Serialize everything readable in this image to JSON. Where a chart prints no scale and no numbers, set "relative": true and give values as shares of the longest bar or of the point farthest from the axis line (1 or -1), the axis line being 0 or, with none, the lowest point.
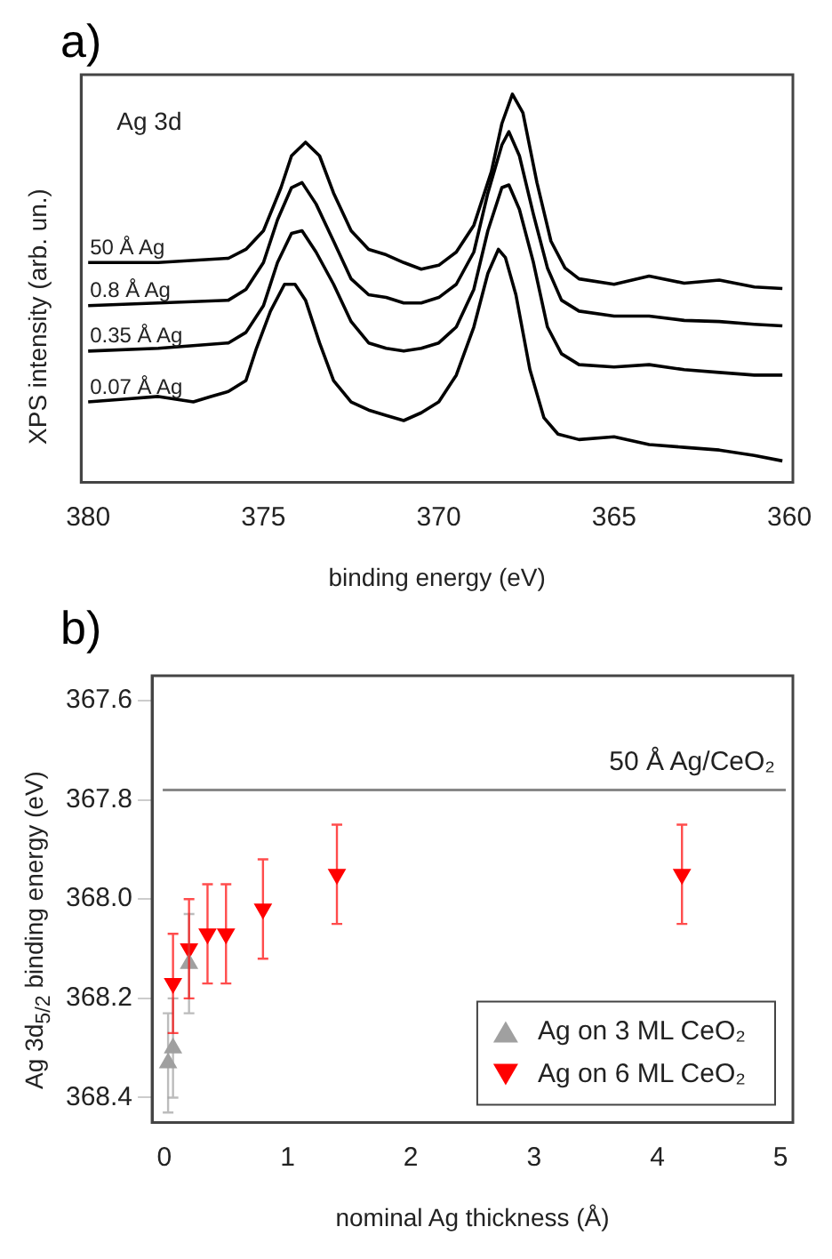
{
  "chart_data": [
    {
      "type": "line",
      "title": "a)",
      "xlabel": "binding energy (eV)",
      "ylabel": "XPS intensity (arb. un.)",
      "relative": true,
      "xlim": [
        380.2,
        359.9
      ],
      "xticks": [
        380,
        375,
        370,
        365,
        360
      ],
      "grid": false,
      "legend": false,
      "marker": "none",
      "line_style": "solid",
      "annotations": [
        "Ag 3d"
      ],
      "series": [
        {
          "name": "50 Å Ag",
          "color": "#000000",
          "x": [
            380,
            378,
            376,
            375.5,
            375,
            374.5,
            374.2,
            373.8,
            373.4,
            373,
            372.5,
            372,
            371.5,
            371,
            370.5,
            370,
            369.5,
            369,
            368.5,
            368.2,
            367.9,
            367.6,
            367.2,
            366.8,
            366.4,
            366,
            365,
            364,
            363,
            362,
            361,
            360.2
          ],
          "values": [
            0.566,
            0.566,
            0.577,
            0.6,
            0.648,
            0.759,
            0.841,
            0.876,
            0.841,
            0.745,
            0.648,
            0.6,
            0.586,
            0.566,
            0.549,
            0.559,
            0.593,
            0.662,
            0.8,
            0.924,
            1,
            0.952,
            0.772,
            0.621,
            0.552,
            0.524,
            0.51,
            0.531,
            0.513,
            0.521,
            0.503,
            0.499
          ]
        },
        {
          "name": "0.8 Å Ag",
          "color": "#000000",
          "x": [
            380,
            378,
            376,
            375.5,
            375,
            374.6,
            374.2,
            373.9,
            373.5,
            373,
            372.5,
            372,
            371.5,
            371,
            370.5,
            370,
            369.5,
            369,
            368.6,
            368.2,
            368,
            367.7,
            367.3,
            366.9,
            366.5,
            366,
            365,
            364,
            363,
            362,
            361,
            360.2
          ],
          "values": [
            0.455,
            0.462,
            0.469,
            0.497,
            0.566,
            0.676,
            0.759,
            0.772,
            0.717,
            0.621,
            0.524,
            0.483,
            0.476,
            0.462,
            0.462,
            0.476,
            0.51,
            0.593,
            0.745,
            0.869,
            0.903,
            0.841,
            0.69,
            0.552,
            0.469,
            0.441,
            0.428,
            0.428,
            0.417,
            0.414,
            0.407,
            0.403
          ]
        },
        {
          "name": "0.35 Å Ag",
          "color": "#000000",
          "x": [
            380,
            378,
            376,
            375.5,
            375,
            374.6,
            374.2,
            373.9,
            373.5,
            373,
            372.5,
            372,
            371.5,
            371,
            370.5,
            370,
            369.5,
            369,
            368.6,
            368.2,
            368,
            367.7,
            367.3,
            366.9,
            366.5,
            366,
            365,
            364,
            363,
            362,
            361,
            360.2
          ],
          "values": [
            0.338,
            0.345,
            0.359,
            0.386,
            0.455,
            0.566,
            0.641,
            0.648,
            0.593,
            0.51,
            0.414,
            0.359,
            0.345,
            0.338,
            0.345,
            0.359,
            0.4,
            0.497,
            0.648,
            0.759,
            0.766,
            0.703,
            0.566,
            0.4,
            0.331,
            0.303,
            0.297,
            0.303,
            0.29,
            0.283,
            0.276,
            0.276
          ]
        },
        {
          "name": "0.07 Å Ag",
          "color": "#000000",
          "x": [
            380,
            379,
            378,
            377,
            376.5,
            376,
            375.5,
            375.2,
            374.8,
            374.4,
            374.1,
            373.8,
            373.4,
            373,
            372.5,
            372,
            371.5,
            371,
            370.5,
            370,
            369.5,
            369,
            368.6,
            368.3,
            368.1,
            367.8,
            367.4,
            367,
            366.6,
            366,
            365,
            364,
            363,
            362,
            361,
            360.2
          ],
          "values": [
            0.207,
            0.214,
            0.221,
            0.207,
            0.221,
            0.234,
            0.262,
            0.345,
            0.441,
            0.51,
            0.51,
            0.469,
            0.359,
            0.262,
            0.207,
            0.186,
            0.172,
            0.159,
            0.179,
            0.207,
            0.276,
            0.4,
            0.538,
            0.6,
            0.579,
            0.483,
            0.29,
            0.166,
            0.124,
            0.11,
            0.117,
            0.097,
            0.09,
            0.083,
            0.069,
            0.055
          ]
        }
      ]
    },
    {
      "type": "scatter",
      "title": "b)",
      "xlabel": "nominal Ag thickness (Å)",
      "ylabel": "Ag 3d$_{5/2}$ binding energy (eV)",
      "xlim": [
        -0.1,
        5.1
      ],
      "xticks": [
        0,
        1,
        2,
        3,
        4,
        5
      ],
      "ylim": [
        368.45,
        367.55
      ],
      "yticks": [
        367.6,
        367.8,
        {
          "value": 368,
          "label": "368.0"
        },
        368.2,
        368.4
      ],
      "grid": false,
      "legend": "bottom right",
      "ref_lines": [
        {
          "axis": "y",
          "value": 367.78,
          "label": "50 Å Ag/CeO₂",
          "color": "#888888"
        }
      ],
      "series": [
        {
          "name": "Ag on 3 ML CeO₂",
          "color": "#a0a0a0",
          "marker": "triangle",
          "x": [
            0.03,
            0.07,
            0.2
          ],
          "values": [
            368.33,
            368.3,
            368.13
          ],
          "errors": [
            0.1,
            0.1,
            0.1
          ]
        },
        {
          "name": "Ag on 6 ML CeO₂",
          "color": "#ff0000",
          "marker": "triangle-down",
          "x": [
            0.07,
            0.2,
            0.35,
            0.5,
            0.8,
            1.4,
            4.2
          ],
          "values": [
            368.17,
            368.1,
            368.07,
            368.07,
            368.02,
            367.95,
            367.95
          ],
          "errors": [
            0.1,
            0.1,
            0.1,
            0.1,
            0.1,
            0.1,
            0.1
          ]
        }
      ]
    }
  ]
}
